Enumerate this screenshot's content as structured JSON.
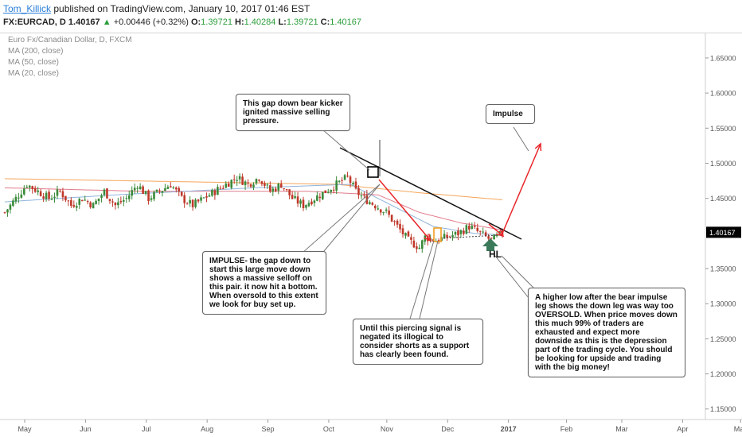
{
  "header": {
    "author": "Tom_Killick",
    "published_text": "published on TradingView.com, January 10, 2017 01:46 EST",
    "symbol_line": "FX:EURCAD, D",
    "last_price": "1.40167",
    "change": "+0.00446 (+0.32%)",
    "o_label": "O:",
    "o_value": "1.39721",
    "h_label": "H:",
    "h_value": "1.40284",
    "l_label": "L:",
    "l_value": "1.39721",
    "c_label": "C:",
    "c_value": "1.40167"
  },
  "legend": {
    "title": "Euro Fx/Canadian Dollar, D, FXCM",
    "ma200": "MA (200, close)",
    "ma50": "MA (50, close)",
    "ma20": "MA (20, close)"
  },
  "notes": {
    "gap_kicker": "This gap down bear kicker ignited massive selling pressure.",
    "impulse": "Impulse",
    "impulse_down": "IMPULSE- the gap down to start this large move down shows a massive selloff on this pair. it now hit a bottom. When oversold to this extent we look for buy set up.",
    "piercing": "Until this piercing signal is negated its illogical to consider shorts as a support has clearly been found.",
    "higher_low": "A higher low after the bear impulse leg shows the down leg was way too OVERSOLD. When price moves down this much 99% of traders are exhausted and expect more downside as this is the depression part of the trading cycle. You should be looking for upside and trading with the big money!",
    "hl": "HL"
  },
  "colors": {
    "up_candle": "#3a8a3a",
    "down_candle": "#c0392b",
    "ma200": "#f5a55a",
    "ma50": "#e07a8a",
    "ma20": "#8fb3dc",
    "arrow": "#e8262a",
    "trendline": "#111111",
    "hl_arrow": "#3a7a5a",
    "price_tag": "#000000"
  },
  "chart_data": {
    "type": "candlestick",
    "title": "Euro Fx/Canadian Dollar, D, FXCM",
    "x_tick_labels": [
      "May",
      "Jun",
      "Jul",
      "Aug",
      "Sep",
      "Oct",
      "Nov",
      "Dec",
      "2017",
      "Feb",
      "Mar",
      "Apr",
      "May"
    ],
    "y_tick_labels": [
      "1.65000",
      "1.60000",
      "1.55000",
      "1.50000",
      "1.45000",
      "1.35000",
      "1.30000",
      "1.25000",
      "1.20000",
      "1.15000"
    ],
    "y_ticks": [
      1.65,
      1.6,
      1.55,
      1.5,
      1.45,
      1.35,
      1.3,
      1.25,
      1.2,
      1.15
    ],
    "ylim": [
      1.135,
      1.685
    ],
    "last_price_label": "1.40167",
    "series_close_anchor": [
      [
        0,
        1.43
      ],
      [
        4,
        1.45
      ],
      [
        8,
        1.47
      ],
      [
        12,
        1.46
      ],
      [
        16,
        1.45
      ],
      [
        20,
        1.46
      ],
      [
        24,
        1.44
      ],
      [
        28,
        1.45
      ],
      [
        32,
        1.44
      ],
      [
        36,
        1.46
      ],
      [
        40,
        1.44
      ],
      [
        44,
        1.45
      ],
      [
        48,
        1.47
      ],
      [
        52,
        1.45
      ],
      [
        56,
        1.46
      ],
      [
        60,
        1.47
      ],
      [
        64,
        1.45
      ],
      [
        68,
        1.44
      ],
      [
        72,
        1.45
      ],
      [
        76,
        1.46
      ],
      [
        80,
        1.47
      ],
      [
        84,
        1.48
      ],
      [
        88,
        1.47
      ],
      [
        92,
        1.48
      ],
      [
        96,
        1.46
      ],
      [
        100,
        1.47
      ],
      [
        104,
        1.45
      ],
      [
        108,
        1.44
      ],
      [
        112,
        1.45
      ],
      [
        116,
        1.46
      ],
      [
        120,
        1.47
      ],
      [
        124,
        1.48
      ],
      [
        127,
        1.46
      ],
      [
        130,
        1.45
      ],
      [
        134,
        1.44
      ],
      [
        138,
        1.43
      ],
      [
        142,
        1.41
      ],
      [
        146,
        1.39
      ],
      [
        150,
        1.38
      ],
      [
        152,
        1.395
      ],
      [
        156,
        1.39
      ],
      [
        160,
        1.395
      ],
      [
        164,
        1.4
      ],
      [
        168,
        1.41
      ],
      [
        172,
        1.4
      ],
      [
        176,
        1.39
      ],
      [
        180,
        1.4
      ]
    ],
    "ma200": [
      [
        0,
        1.478
      ],
      [
        60,
        1.474
      ],
      [
        120,
        1.47
      ],
      [
        150,
        1.458
      ],
      [
        180,
        1.448
      ]
    ],
    "ma50": [
      [
        0,
        1.465
      ],
      [
        50,
        1.46
      ],
      [
        110,
        1.46
      ],
      [
        135,
        1.455
      ],
      [
        150,
        1.43
      ],
      [
        165,
        1.415
      ],
      [
        180,
        1.405
      ]
    ],
    "ma20": [
      [
        0,
        1.445
      ],
      [
        40,
        1.455
      ],
      [
        90,
        1.465
      ],
      [
        125,
        1.47
      ],
      [
        140,
        1.44
      ],
      [
        155,
        1.41
      ],
      [
        170,
        1.4
      ],
      [
        180,
        1.398
      ]
    ]
  }
}
